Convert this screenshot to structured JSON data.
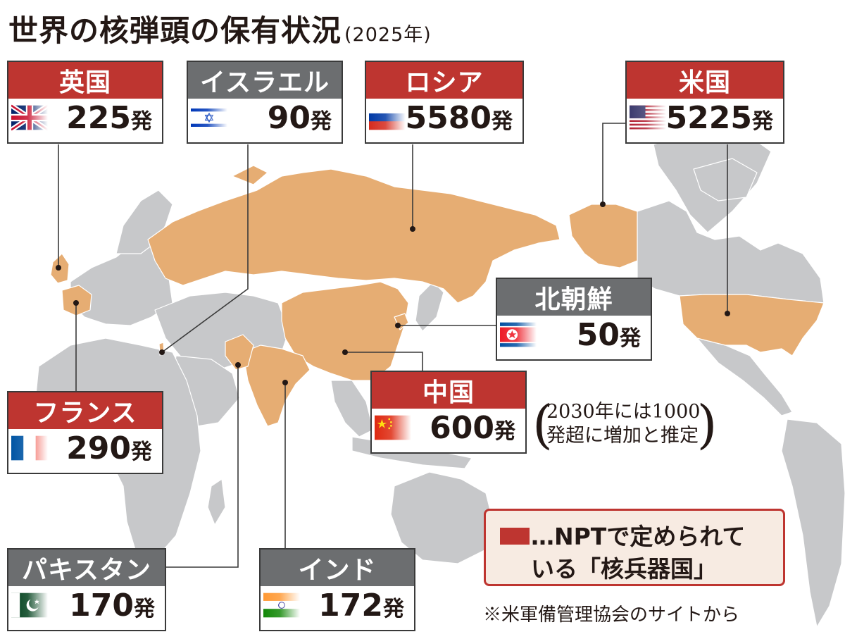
{
  "title": "世界の核弾頭の保有状況",
  "year": "(2025年)",
  "colors": {
    "npt": "#be3530",
    "non_npt": "#6c6e70",
    "land": "#c7c8ca",
    "nuclear": "#e6ad73",
    "ocean": "#ffffff"
  },
  "countries": [
    {
      "id": "uk",
      "name": "英国",
      "count": "225",
      "unit": "発",
      "npt": true,
      "flag": "uk-flag-icon"
    },
    {
      "id": "israel",
      "name": "イスラエル",
      "count": "90",
      "unit": "発",
      "npt": false,
      "flag": "israel-flag-icon"
    },
    {
      "id": "russia",
      "name": "ロシア",
      "count": "5580",
      "unit": "発",
      "npt": true,
      "flag": "russia-flag-icon"
    },
    {
      "id": "usa",
      "name": "米国",
      "count": "5225",
      "unit": "発",
      "npt": true,
      "flag": "usa-flag-icon"
    },
    {
      "id": "nkorea",
      "name": "北朝鮮",
      "count": "50",
      "unit": "発",
      "npt": false,
      "flag": "north-korea-flag-icon"
    },
    {
      "id": "china",
      "name": "中国",
      "count": "600",
      "unit": "発",
      "npt": true,
      "flag": "china-flag-icon"
    },
    {
      "id": "france",
      "name": "フランス",
      "count": "290",
      "unit": "発",
      "npt": true,
      "flag": "france-flag-icon"
    },
    {
      "id": "pakistan",
      "name": "パキスタン",
      "count": "170",
      "unit": "発",
      "npt": false,
      "flag": "pakistan-flag-icon"
    },
    {
      "id": "india",
      "name": "インド",
      "count": "172",
      "unit": "発",
      "npt": false,
      "flag": "india-flag-icon"
    }
  ],
  "china_note": {
    "line1": "2030年には1000",
    "line2": "発超に増加と推定",
    "open": "(",
    "close": ")"
  },
  "legend": {
    "line1": "…NPTで定められて",
    "line2": "いる「核兵器国」"
  },
  "source": "※米軍備管理協会のサイトから"
}
